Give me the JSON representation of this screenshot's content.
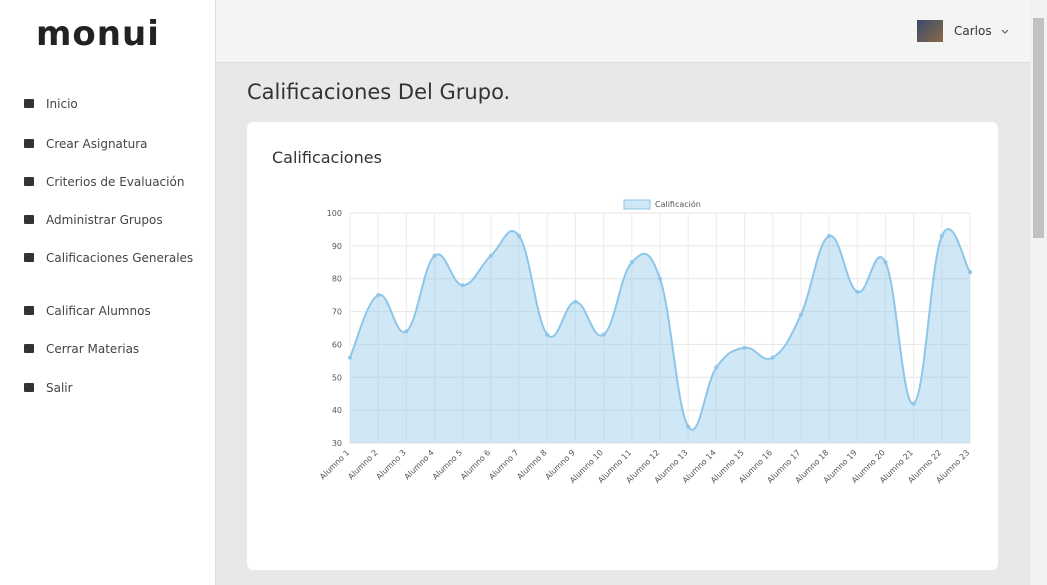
{
  "brand": "monui",
  "user": {
    "name": "Carlos"
  },
  "menu": [
    "Inicio",
    "Crear Asignatura",
    "Criterios de Evaluación",
    "Administrar Grupos",
    "Calificaciones Generales",
    "Calificar Alumnos",
    "Cerrar Materias",
    "Salir"
  ],
  "page_title": "Calificaciones Del Grupo.",
  "card_title": "Calificaciones",
  "chart_data": {
    "type": "area",
    "categories": [
      "Alumno 1",
      "Alumno 2",
      "Alumno 3",
      "Alumno 4",
      "Alumno 5",
      "Alumno 6",
      "Alumno 7",
      "Alumno 8",
      "Alumno 9",
      "Alumno 10",
      "Alumno 11",
      "Alumno 12",
      "Alumno 13",
      "Alumno 14",
      "Alumno 15",
      "Alumno 16",
      "Alumno 17",
      "Alumno 18",
      "Alumno 19",
      "Alumno 20",
      "Alumno 21",
      "Alumno 22",
      "Alumno 23"
    ],
    "series": [
      {
        "name": "Calificación",
        "color": "#8ec6ea",
        "values": [
          56,
          75,
          64,
          87,
          78,
          87,
          93,
          63,
          73,
          63,
          85,
          80,
          35,
          53,
          59,
          56,
          69,
          93,
          76,
          85,
          42,
          93,
          82
        ]
      }
    ],
    "ylim": [
      30,
      100
    ],
    "yticks": [
      30,
      40,
      50,
      60,
      70,
      80,
      90,
      100
    ],
    "grid": true,
    "legend": "top"
  }
}
